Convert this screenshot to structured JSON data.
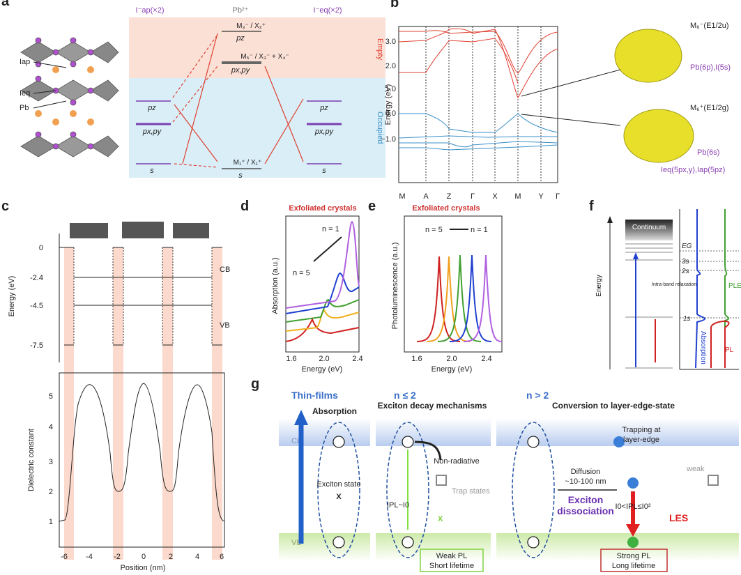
{
  "figure": {
    "a": {
      "label": "a",
      "top_labels": [
        "I⁻ap(×2)",
        "Pb²⁺",
        "I⁻eq(×2)"
      ],
      "regions": [
        "Empty",
        "Occupied"
      ],
      "atoms": [
        "Iap",
        "Ieq",
        "Pb"
      ],
      "levels_left": [
        "pz",
        "px,py",
        "s"
      ],
      "levels_mid": [
        "M₃⁻ / X₂⁺",
        "pz",
        "M₅⁻ / X₃⁻ + X₄⁻",
        "px,py",
        "M₁⁺ / X₁⁺",
        "s"
      ],
      "levels_right": [
        "pz",
        "px,py",
        "s"
      ]
    },
    "b": {
      "label": "b",
      "y_axis_title": "Energy (eV)",
      "yticks": [
        "3.0",
        "2.0",
        "1.0",
        "0.0",
        "−1.0"
      ],
      "xticks": [
        "M",
        "A",
        "Z",
        "Γ",
        "X",
        "M",
        "Y",
        "Γ"
      ],
      "annotations": [
        "M₆⁻(E1/2u)",
        "Pb(6p),I(5s)",
        "M₆⁺(E1/2g)",
        "Pb(6s)",
        "Ieq(5px,y),Iap(5pz)"
      ]
    },
    "c": {
      "label": "c",
      "y_axis_title": "Energy (eV)",
      "yticks": [
        "0",
        "-2.4",
        "-4.5",
        "-7.5"
      ],
      "band_labels": [
        "CB",
        "VB"
      ],
      "lower_y_axis_title": "Dielectric constant",
      "lower_yticks": [
        "1",
        "2",
        "3",
        "4",
        "5"
      ],
      "xticks": [
        "-6",
        "-4",
        "-2",
        "0",
        "2",
        "4",
        "6"
      ],
      "x_axis_title": "Position (nm)"
    },
    "d": {
      "label": "d",
      "title": "Exfoliated crystals",
      "y_axis_title": "Absorption (a.u.)",
      "x_axis_title": "Energy (eV)",
      "xticks": [
        "1.6",
        "2.0",
        "2.4"
      ],
      "annotations": [
        "n = 1",
        "n = 5"
      ]
    },
    "e": {
      "label": "e",
      "title": "Exfoliated crystals",
      "y_axis_title": "Photoluminescence (a.u.)",
      "x_axis_title": "Energy (eV)",
      "xticks": [
        "1.6",
        "2.0",
        "2.4"
      ],
      "annotations": [
        "n = 5",
        "n = 1"
      ]
    },
    "f": {
      "label": "f",
      "y_axis_title": "Energy",
      "texts": [
        "Continuum",
        "Intra-band relaxation",
        "EG",
        "3s",
        "2s",
        "1s",
        "PLE",
        "Absorption",
        "PL"
      ]
    },
    "g": {
      "label": "g",
      "columns": [
        "Thin-films",
        "n ≤ 2",
        "n > 2"
      ],
      "headings": [
        "Absorption",
        "Exciton decay mechanisms",
        "Conversion to layer-edge-state"
      ],
      "bands": [
        "CB",
        "VB"
      ],
      "texts": [
        "Exciton state",
        "X",
        "Non-radiative",
        "Trap states",
        "IPL~I0",
        "X",
        "Weak PL",
        "Short lifetime",
        "Diffusion",
        "~10-100 nm",
        "Exciton",
        "dissociation",
        "Trapping at",
        "layer-edge",
        "weak",
        "I0<IPL≤I0²",
        "LES",
        "Strong PL",
        "Long lifetime"
      ]
    }
  }
}
